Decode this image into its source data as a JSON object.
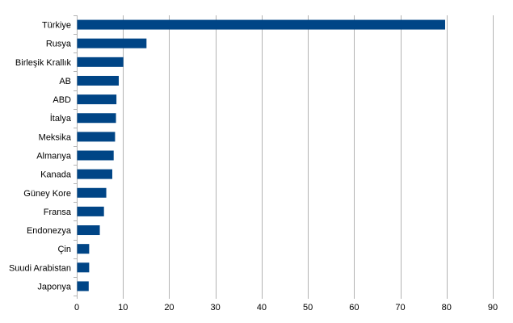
{
  "chart_data": {
    "type": "bar",
    "orientation": "horizontal",
    "categories": [
      "Türkiye",
      "Rusya",
      "Birleşik Krallık",
      "AB",
      "ABD",
      "İtalya",
      "Meksika",
      "Almanya",
      "Kanada",
      "Güney Kore",
      "Fransa",
      "Endonezya",
      "Çin",
      "Suudi Arabistan",
      "Japonya"
    ],
    "values": [
      79.6,
      15.0,
      10.0,
      9.0,
      8.5,
      8.4,
      8.2,
      7.9,
      7.6,
      6.3,
      5.8,
      4.9,
      2.6,
      2.6,
      2.5
    ],
    "title": "",
    "xlabel": "",
    "ylabel": "",
    "xlim": [
      0,
      90
    ],
    "x_ticks": [
      0,
      10,
      20,
      30,
      40,
      50,
      60,
      70,
      80,
      90
    ],
    "grid": "vertical",
    "legend": "none",
    "bar_color": "#004586"
  }
}
